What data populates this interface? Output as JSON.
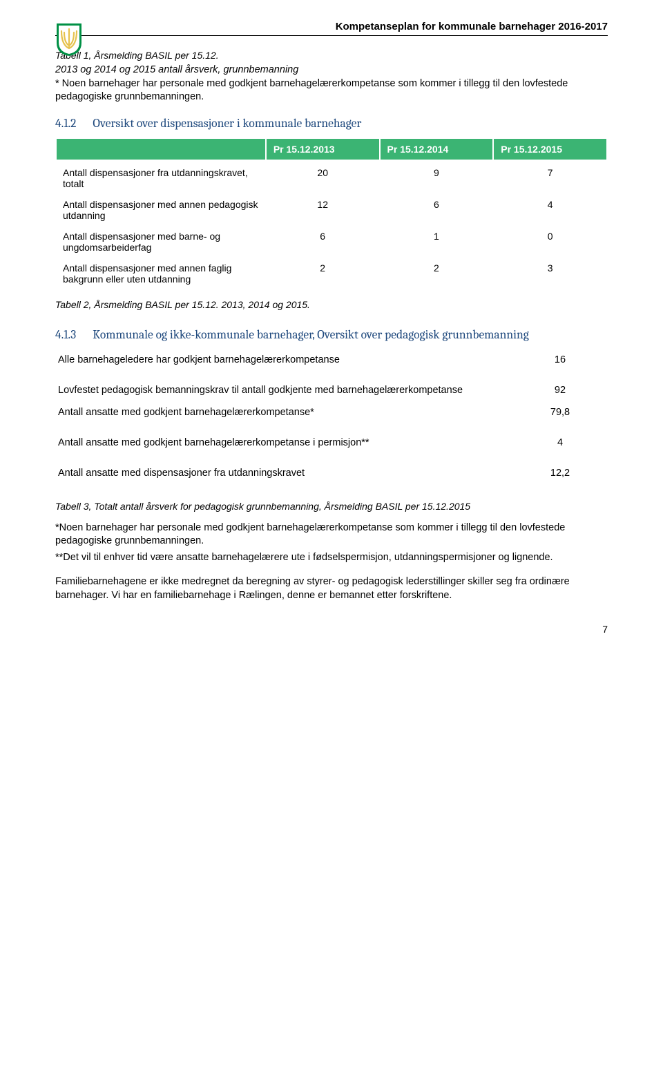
{
  "header": {
    "title": "Kompetanseplan for kommunale barnehager 2016-2017"
  },
  "caption1": {
    "title": "Tabell 1, Årsmelding BASIL per 15.12.",
    "sub": "2013 og 2014 og 2015 antall årsverk, grunnbemanning",
    "note": "* Noen barnehager har personale med godkjent barnehagelærerkompetanse som kommer i tillegg til den lovfestede pedagogiske grunnbemanningen."
  },
  "section1": {
    "num": "4.1.2",
    "title": "Oversikt over dispensasjoner i kommunale barnehager"
  },
  "table1": {
    "headers": [
      "",
      "Pr 15.12.2013",
      "Pr 15.12.2014",
      "Pr 15.12.2015"
    ],
    "rows": [
      {
        "label": "Antall dispensasjoner fra utdanningskravet, totalt",
        "c1": "20",
        "c2": "9",
        "c3": "7"
      },
      {
        "label": "Antall dispensasjoner med annen pedagogisk utdanning",
        "c1": "12",
        "c2": "6",
        "c3": "4"
      },
      {
        "label": "Antall dispensasjoner med barne- og ungdomsarbeiderfag",
        "c1": "6",
        "c2": "1",
        "c3": "0"
      },
      {
        "label": "Antall dispensasjoner med annen faglig bakgrunn eller uten utdanning",
        "c1": "2",
        "c2": "2",
        "c3": "3"
      }
    ]
  },
  "caption2": "Tabell 2, Årsmelding BASIL per 15.12. 2013, 2014 og 2015.",
  "section2": {
    "num": "4.1.3",
    "title": "Kommunale og ikke-kommunale barnehager, Oversikt over pedagogisk grunnbemanning"
  },
  "table2": {
    "rows": [
      {
        "label": "Alle barnehageledere har godkjent barnehagelærerkompetanse",
        "val": "16",
        "spaced": false
      },
      {
        "label": "Lovfestet pedagogisk bemanningskrav til antall godkjente med barnehagelærerkompetanse",
        "val": "92",
        "spaced": true
      },
      {
        "label": "Antall ansatte med godkjent barnehagelærerkompetanse*",
        "val": "79,8",
        "spaced": false
      },
      {
        "label": "Antall ansatte med godkjent barnehagelærerkompetanse i permisjon**",
        "val": "4",
        "spaced": true
      },
      {
        "label": "Antall ansatte med dispensasjoner fra utdanningskravet",
        "val": "12,2",
        "spaced": true
      }
    ]
  },
  "caption3": "Tabell 3, Totalt antall årsverk for pedagogisk grunnbemanning, Årsmelding BASIL per 15.12.2015",
  "paragraphs": {
    "p1": " *Noen barnehager har personale med godkjent barnehagelærerkompetanse som kommer i tillegg til den lovfestede pedagogiske grunnbemanningen.",
    "p2": "**Det vil til enhver tid være ansatte barnehagelærere ute i fødselspermisjon, utdanningspermisjoner og lignende.",
    "p3": "Familiebarnehagene er ikke medregnet da beregning av styrer- og pedagogisk lederstillinger skiller seg fra ordinære barnehager. Vi har en familiebarnehage i Rælingen, denne er bemannet etter forskriftene."
  },
  "page_number": "7",
  "colors": {
    "table_header_bg": "#3bb473",
    "section_heading": "#1f497d",
    "crest_outer": "#009045",
    "crest_inner": "#e6c24d"
  }
}
